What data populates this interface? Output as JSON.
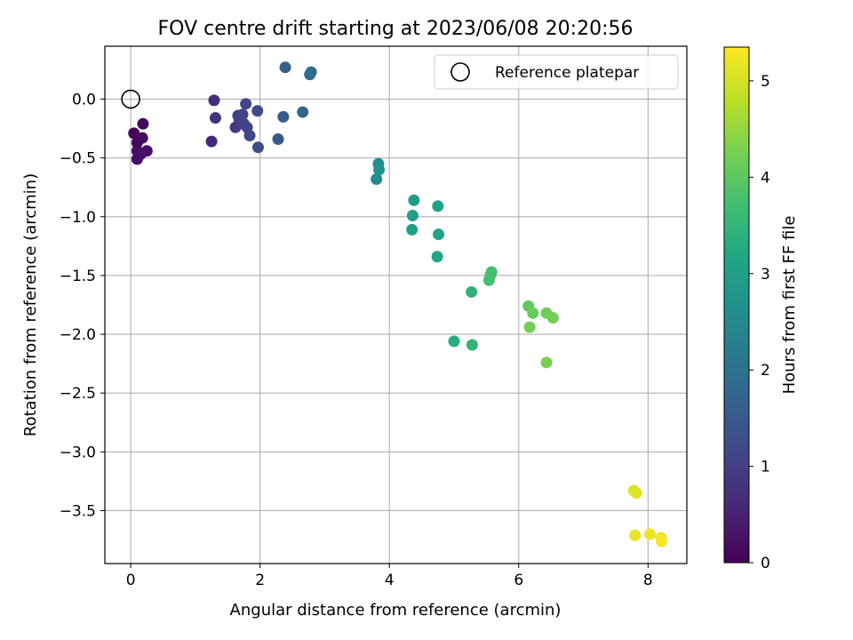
{
  "chart_data": {
    "type": "scatter",
    "title": "FOV centre drift starting at 2023/06/08 20:20:56",
    "xlabel": "Angular distance from reference (arcmin)",
    "ylabel": "Rotation from reference (arcmin)",
    "xlim": [
      -0.4,
      8.6
    ],
    "ylim": [
      -3.95,
      0.45
    ],
    "xticks": [
      0,
      2,
      4,
      6,
      8
    ],
    "yticks": [
      0.0,
      -0.5,
      -1.0,
      -1.5,
      -2.0,
      -2.5,
      -3.0,
      -3.5
    ],
    "xtick_labels": [
      "0",
      "2",
      "4",
      "6",
      "8"
    ],
    "ytick_labels": [
      "0.0",
      "−0.5",
      "−1.0",
      "−1.5",
      "−2.0",
      "−2.5",
      "−3.0",
      "−3.5"
    ],
    "grid": true,
    "legend": {
      "position": "top-right",
      "entries": [
        "Reference platepar"
      ]
    },
    "reference_point": {
      "x": 0,
      "y": 0
    },
    "colorbar": {
      "label": "Hours from first FF file",
      "range": [
        0,
        5.35
      ],
      "ticks": [
        0,
        1,
        2,
        3,
        4,
        5
      ],
      "tick_labels": [
        "0",
        "1",
        "2",
        "3",
        "4",
        "5"
      ],
      "colormap": "viridis"
    },
    "points": [
      {
        "x": 0.05,
        "y": -0.29,
        "c": 0.05
      },
      {
        "x": 0.1,
        "y": -0.37,
        "c": 0.1
      },
      {
        "x": 0.19,
        "y": -0.21,
        "c": 0.12
      },
      {
        "x": 0.18,
        "y": -0.33,
        "c": 0.15
      },
      {
        "x": 0.1,
        "y": -0.44,
        "c": 0.18
      },
      {
        "x": 0.25,
        "y": -0.44,
        "c": 0.2
      },
      {
        "x": 0.1,
        "y": -0.51,
        "c": 0.22
      },
      {
        "x": 0.15,
        "y": -0.47,
        "c": 0.25
      },
      {
        "x": 1.25,
        "y": -0.36,
        "c": 0.6
      },
      {
        "x": 1.29,
        "y": -0.01,
        "c": 0.7
      },
      {
        "x": 1.31,
        "y": -0.16,
        "c": 0.75
      },
      {
        "x": 1.62,
        "y": -0.24,
        "c": 0.9
      },
      {
        "x": 1.66,
        "y": -0.14,
        "c": 0.95
      },
      {
        "x": 1.68,
        "y": -0.18,
        "c": 1.0
      },
      {
        "x": 1.73,
        "y": -0.13,
        "c": 1.02
      },
      {
        "x": 1.75,
        "y": -0.21,
        "c": 1.05
      },
      {
        "x": 1.78,
        "y": -0.04,
        "c": 1.08
      },
      {
        "x": 1.8,
        "y": -0.24,
        "c": 1.1
      },
      {
        "x": 1.84,
        "y": -0.31,
        "c": 1.12
      },
      {
        "x": 1.96,
        "y": -0.1,
        "c": 1.2
      },
      {
        "x": 1.97,
        "y": -0.41,
        "c": 1.25
      },
      {
        "x": 2.28,
        "y": -0.34,
        "c": 1.5
      },
      {
        "x": 2.36,
        "y": -0.15,
        "c": 1.55
      },
      {
        "x": 2.39,
        "y": 0.27,
        "c": 1.65
      },
      {
        "x": 2.66,
        "y": -0.11,
        "c": 1.75
      },
      {
        "x": 2.77,
        "y": 0.21,
        "c": 1.85
      },
      {
        "x": 2.79,
        "y": 0.23,
        "c": 1.9
      },
      {
        "x": 3.8,
        "y": -0.68,
        "c": 2.6
      },
      {
        "x": 3.83,
        "y": -0.55,
        "c": 2.65
      },
      {
        "x": 3.84,
        "y": -0.6,
        "c": 2.7
      },
      {
        "x": 4.38,
        "y": -0.86,
        "c": 2.9
      },
      {
        "x": 4.36,
        "y": -0.99,
        "c": 2.95
      },
      {
        "x": 4.35,
        "y": -1.11,
        "c": 3.0
      },
      {
        "x": 4.75,
        "y": -0.91,
        "c": 3.05
      },
      {
        "x": 4.76,
        "y": -1.15,
        "c": 3.1
      },
      {
        "x": 4.74,
        "y": -1.34,
        "c": 3.15
      },
      {
        "x": 5.0,
        "y": -2.06,
        "c": 3.35
      },
      {
        "x": 5.27,
        "y": -1.64,
        "c": 3.45
      },
      {
        "x": 5.28,
        "y": -2.09,
        "c": 3.5
      },
      {
        "x": 5.58,
        "y": -1.47,
        "c": 3.7
      },
      {
        "x": 5.56,
        "y": -1.5,
        "c": 3.72
      },
      {
        "x": 5.54,
        "y": -1.54,
        "c": 3.75
      },
      {
        "x": 6.15,
        "y": -1.76,
        "c": 4.05
      },
      {
        "x": 6.22,
        "y": -1.82,
        "c": 4.1
      },
      {
        "x": 6.43,
        "y": -1.82,
        "c": 4.15
      },
      {
        "x": 6.53,
        "y": -1.86,
        "c": 4.2
      },
      {
        "x": 6.17,
        "y": -1.94,
        "c": 4.2
      },
      {
        "x": 6.43,
        "y": -2.24,
        "c": 4.25
      },
      {
        "x": 7.78,
        "y": -3.33,
        "c": 5.05
      },
      {
        "x": 7.82,
        "y": -3.35,
        "c": 5.08
      },
      {
        "x": 7.8,
        "y": -3.71,
        "c": 5.15
      },
      {
        "x": 8.03,
        "y": -3.7,
        "c": 5.2
      },
      {
        "x": 8.2,
        "y": -3.73,
        "c": 5.25
      },
      {
        "x": 8.21,
        "y": -3.76,
        "c": 5.3
      }
    ]
  }
}
